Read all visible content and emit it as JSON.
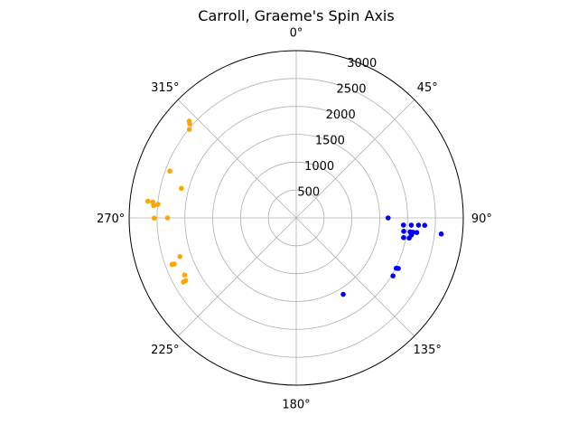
{
  "chart_data": {
    "type": "scatter",
    "projection": "polar",
    "title": "Carroll, Graeme's Spin Axis",
    "theta_zero": "N",
    "theta_direction": "clockwise",
    "rlim": [
      0,
      3000
    ],
    "r_ticks": [
      500,
      1000,
      1500,
      2000,
      2500,
      3000
    ],
    "r_tick_labels": [
      "500",
      "1000",
      "1500",
      "2000",
      "2500",
      "3000"
    ],
    "theta_ticks": [
      0,
      45,
      90,
      135,
      180,
      225,
      270,
      315
    ],
    "theta_tick_labels": [
      "0°",
      "45°",
      "90°",
      "135°",
      "180°",
      "225°",
      "270°",
      "315°"
    ],
    "grid": true,
    "series": [
      {
        "color": "#0000ff",
        "points": [
          {
            "theta": 90.0,
            "r": 1650
          },
          {
            "theta": 93.8,
            "r": 1930
          },
          {
            "theta": 93.6,
            "r": 2070
          },
          {
            "theta": 93.4,
            "r": 2200
          },
          {
            "theta": 93.3,
            "r": 2310
          },
          {
            "theta": 97.1,
            "r": 1945
          },
          {
            "theta": 97.0,
            "r": 2060
          },
          {
            "theta": 97.0,
            "r": 2110
          },
          {
            "theta": 96.9,
            "r": 2180
          },
          {
            "theta": 96.3,
            "r": 2620
          },
          {
            "theta": 98.5,
            "r": 2090
          },
          {
            "theta": 100.4,
            "r": 1960
          },
          {
            "theta": 100.1,
            "r": 2060
          },
          {
            "theta": 116.7,
            "r": 2010
          },
          {
            "theta": 116.3,
            "r": 2045
          },
          {
            "theta": 120.9,
            "r": 2025
          },
          {
            "theta": 148.4,
            "r": 1610
          }
        ]
      },
      {
        "color": "#ffa500",
        "points": [
          {
            "theta": 290.3,
            "r": 2420
          },
          {
            "theta": 284.4,
            "r": 2130
          },
          {
            "theta": 276.3,
            "r": 2590
          },
          {
            "theta": 276.4,
            "r": 2680
          },
          {
            "theta": 275.6,
            "r": 2495
          },
          {
            "theta": 274.9,
            "r": 2570
          },
          {
            "theta": 269.9,
            "r": 2550
          },
          {
            "theta": 270.0,
            "r": 2310
          },
          {
            "theta": 251.6,
            "r": 2200
          },
          {
            "theta": 249.3,
            "r": 2340
          },
          {
            "theta": 249.5,
            "r": 2380
          },
          {
            "theta": 242.9,
            "r": 2250
          },
          {
            "theta": 240.5,
            "r": 2280
          },
          {
            "theta": 240.4,
            "r": 2330
          },
          {
            "theta": 309.6,
            "r": 2490
          },
          {
            "theta": 311.4,
            "r": 2550
          },
          {
            "theta": 312.1,
            "r": 2590
          }
        ]
      }
    ]
  }
}
